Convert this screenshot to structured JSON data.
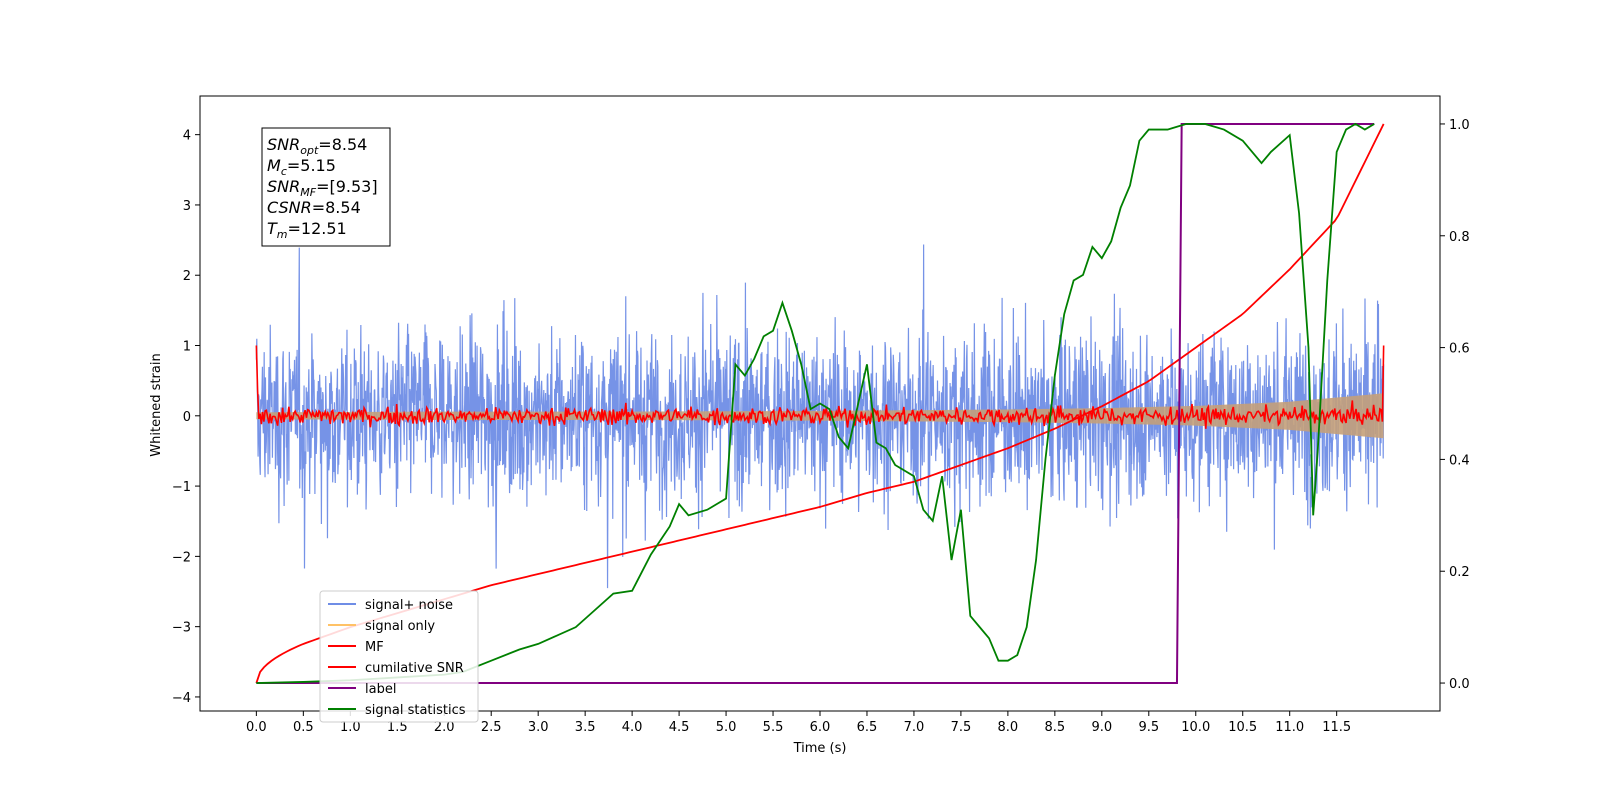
{
  "chart_data": {
    "type": "line",
    "xlabel": "Time (s)",
    "ylabel": "Whitened strain",
    "xlim": [
      -0.6,
      12.6
    ],
    "ylim": [
      -4.2,
      4.55
    ],
    "y2lim": [
      -0.05,
      1.05
    ],
    "xticks": [
      "0.0",
      "0.5",
      "1.0",
      "1.5",
      "2.0",
      "2.5",
      "3.0",
      "3.5",
      "4.0",
      "4.5",
      "5.0",
      "5.5",
      "6.0",
      "6.5",
      "7.0",
      "7.5",
      "8.0",
      "8.5",
      "9.0",
      "9.5",
      "10.0",
      "10.5",
      "11.0",
      "11.5"
    ],
    "yticks": [
      "4",
      "3",
      "2",
      "1",
      "0",
      "−1",
      "−2",
      "−3",
      "−4"
    ],
    "y2ticks": [
      "1.0",
      "0.8",
      "0.6",
      "0.4",
      "0.2",
      "0.0"
    ],
    "grid": false,
    "legend_position": "lower-left",
    "colors": {
      "signal_noise": "#6f8de6",
      "signal_only": "#ffc266",
      "envelope": "#c4a07a",
      "mf": "#ff0000",
      "cumulative_snr": "#ff0000",
      "label": "#800080",
      "signal_statistics": "#008000"
    },
    "annotation": {
      "lines": [
        {
          "main": "SNR",
          "sub": "opt",
          "rest": "=8.54"
        },
        {
          "main": "M",
          "sub": "c",
          "rest": "=5.15"
        },
        {
          "main": "SNR",
          "sub": "MF",
          "rest": "=[9.53]"
        },
        {
          "main": "CSNR",
          "sub": "",
          "rest": "=8.54"
        },
        {
          "main": "T",
          "sub": "m",
          "rest": "=12.51"
        }
      ]
    },
    "series": [
      {
        "name": "signal+ noise",
        "axis": "left",
        "description": "whitened strain, dense noise roughly within ±2.5 with peaks to ±4"
      },
      {
        "name": "signal only",
        "axis": "left",
        "envelope": {
          "x": [
            0,
            2,
            4,
            6,
            8,
            9,
            10,
            11,
            12
          ],
          "amp": [
            0.05,
            0.06,
            0.06,
            0.07,
            0.09,
            0.11,
            0.14,
            0.2,
            0.32
          ]
        }
      },
      {
        "name": "MF",
        "axis": "left",
        "description": "matched filter output near 0, ±0.25, starts at 1.0"
      },
      {
        "name": "cumilative SNR",
        "axis": "right",
        "x": [
          0,
          0.5,
          1,
          1.5,
          2,
          2.5,
          3,
          3.5,
          4,
          4.5,
          5,
          5.5,
          6,
          6.5,
          7,
          7.5,
          8,
          8.5,
          9,
          9.5,
          10,
          10.5,
          11,
          11.5,
          12
        ],
        "y": [
          0.0,
          0.07,
          0.1,
          0.125,
          0.15,
          0.175,
          0.195,
          0.215,
          0.235,
          0.255,
          0.275,
          0.295,
          0.315,
          0.34,
          0.36,
          0.39,
          0.42,
          0.455,
          0.495,
          0.54,
          0.6,
          0.66,
          0.74,
          0.83,
          1.0
        ]
      },
      {
        "name": "label",
        "axis": "right",
        "x": [
          0,
          9.8,
          9.85,
          11.9
        ],
        "y": [
          0,
          0,
          1,
          1
        ]
      },
      {
        "name": "signal statistics",
        "axis": "right",
        "x": [
          0,
          0.5,
          1,
          1.5,
          2,
          2.2,
          2.5,
          2.8,
          3,
          3.2,
          3.4,
          3.6,
          3.8,
          4.0,
          4.2,
          4.4,
          4.5,
          4.6,
          4.8,
          4.9,
          5.0,
          5.1,
          5.2,
          5.3,
          5.4,
          5.5,
          5.6,
          5.7,
          5.8,
          5.9,
          6.0,
          6.1,
          6.2,
          6.3,
          6.5,
          6.6,
          6.7,
          6.8,
          7.0,
          7.1,
          7.2,
          7.3,
          7.4,
          7.5,
          7.6,
          7.7,
          7.8,
          7.9,
          8.0,
          8.1,
          8.2,
          8.3,
          8.4,
          8.5,
          8.6,
          8.7,
          8.8,
          8.9,
          9.0,
          9.1,
          9.2,
          9.3,
          9.4,
          9.5,
          9.7,
          9.9,
          10.1,
          10.3,
          10.5,
          10.7,
          10.8,
          11.0,
          11.1,
          11.2,
          11.25,
          11.3,
          11.4,
          11.5,
          11.6,
          11.7,
          11.8,
          11.9
        ],
        "y": [
          0.0,
          0.002,
          0.005,
          0.01,
          0.015,
          0.02,
          0.04,
          0.06,
          0.07,
          0.085,
          0.1,
          0.13,
          0.16,
          0.165,
          0.23,
          0.28,
          0.32,
          0.3,
          0.31,
          0.32,
          0.33,
          0.57,
          0.55,
          0.58,
          0.62,
          0.63,
          0.68,
          0.63,
          0.57,
          0.49,
          0.5,
          0.49,
          0.44,
          0.42,
          0.57,
          0.43,
          0.42,
          0.39,
          0.37,
          0.31,
          0.29,
          0.37,
          0.22,
          0.31,
          0.12,
          0.1,
          0.08,
          0.04,
          0.04,
          0.05,
          0.1,
          0.22,
          0.4,
          0.55,
          0.66,
          0.72,
          0.73,
          0.78,
          0.76,
          0.79,
          0.85,
          0.89,
          0.97,
          0.99,
          0.99,
          1.0,
          1.0,
          0.99,
          0.97,
          0.93,
          0.95,
          0.98,
          0.84,
          0.6,
          0.3,
          0.42,
          0.72,
          0.95,
          0.99,
          1.0,
          0.99,
          1.0
        ]
      }
    ]
  }
}
